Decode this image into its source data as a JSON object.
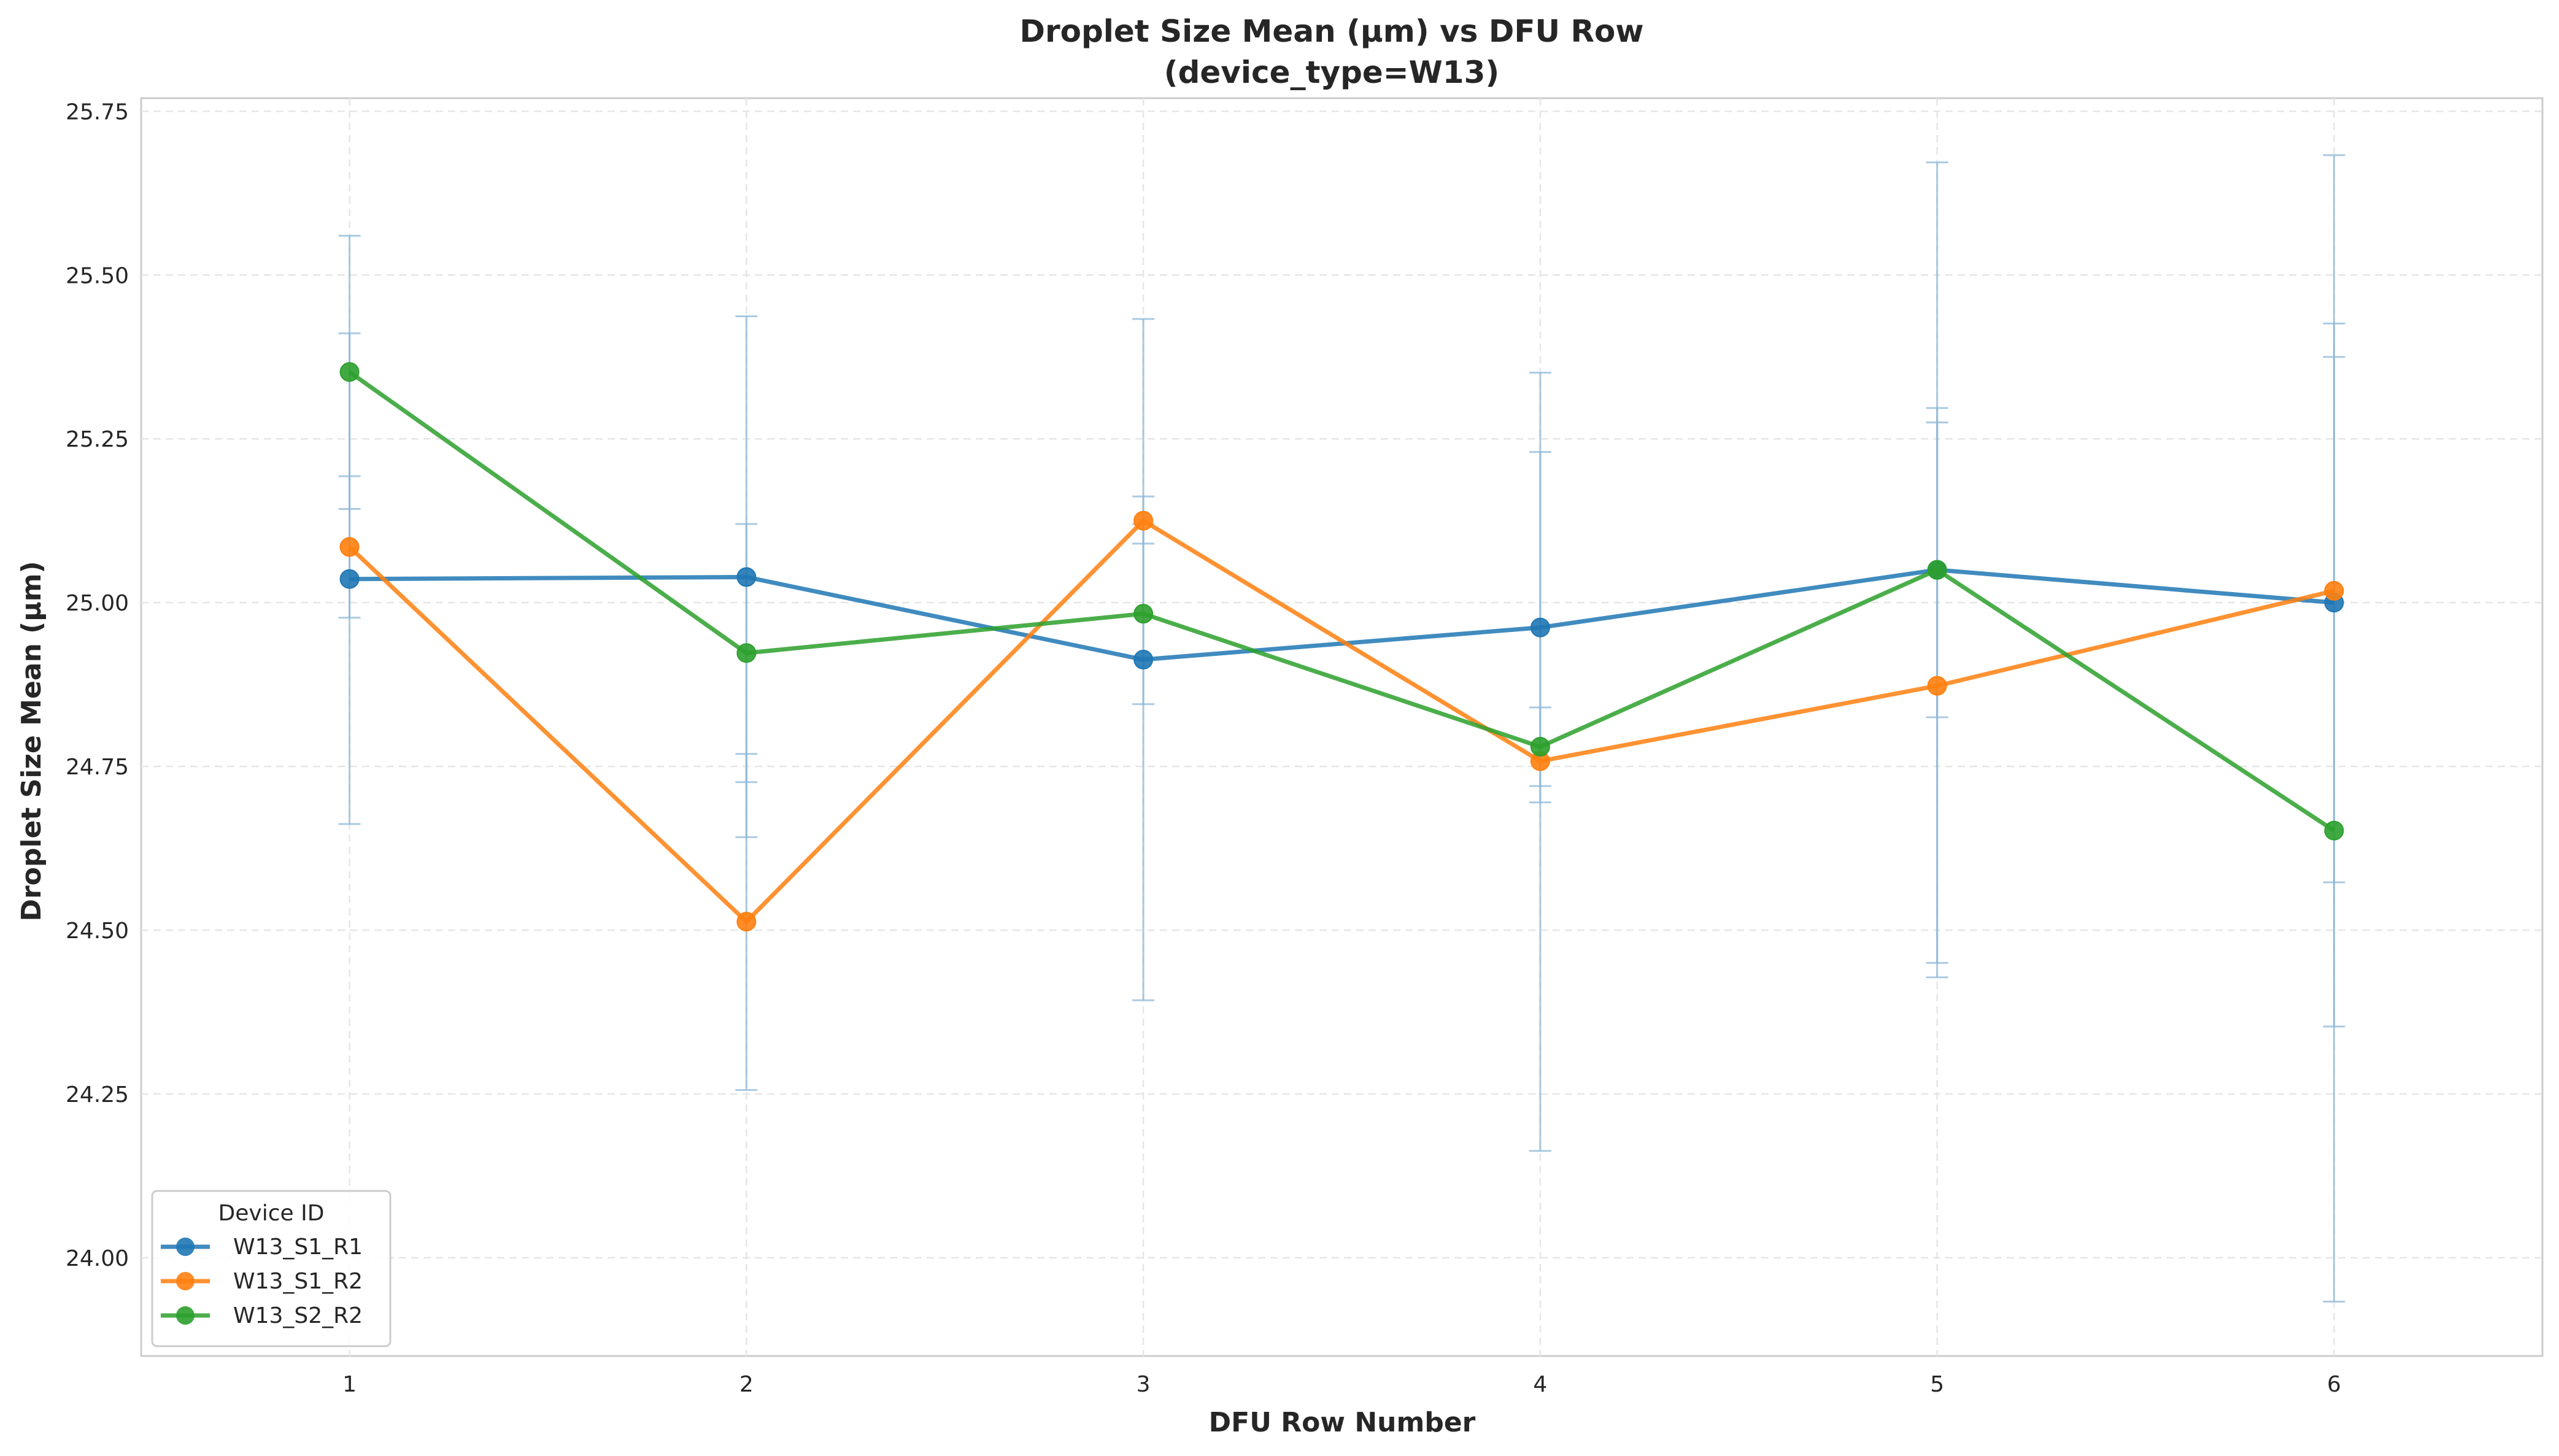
{
  "chart_data": {
    "type": "line",
    "title_line1": "Droplet Size Mean (μm) vs DFU Row",
    "title_line2": "(device_type=W13)",
    "xlabel": "DFU Row Number",
    "ylabel": "Droplet Size Mean (μm)",
    "x": [
      1,
      2,
      3,
      4,
      5,
      6
    ],
    "xlim": [
      0.475,
      6.525
    ],
    "ylim": [
      23.85,
      25.77
    ],
    "yticks": [
      "24.00",
      "24.25",
      "24.50",
      "24.75",
      "25.00",
      "25.25",
      "25.50",
      "25.75"
    ],
    "grid": true,
    "legend": {
      "title": "Device ID",
      "placement": "lower-left"
    },
    "series": [
      {
        "name": "W13_S1_R1",
        "color": "#1f77b4",
        "values": [
          25.036,
          25.039,
          24.913,
          24.962,
          25.05,
          25.0
        ],
        "err_low": [
          24.662,
          24.642,
          24.393,
          24.695,
          24.428,
          24.353
        ],
        "err_high": [
          25.411,
          25.437,
          25.433,
          25.23,
          25.672,
          25.683
        ]
      },
      {
        "name": "W13_S1_R2",
        "color": "#ff7f0e",
        "values": [
          25.085,
          24.513,
          25.125,
          24.758,
          24.873,
          25.018
        ],
        "err_low": [
          24.977,
          24.256,
          25.09,
          24.163,
          24.45,
          23.933
        ],
        "err_high": [
          25.193,
          24.769,
          25.162,
          25.351,
          25.297,
          25.375
        ]
      },
      {
        "name": "W13_S2_R2",
        "color": "#2ca02c",
        "values": [
          25.352,
          24.923,
          24.983,
          24.78,
          25.05,
          24.652
        ],
        "err_low": [
          25.143,
          24.726,
          24.845,
          24.72,
          24.825,
          24.573
        ],
        "err_high": [
          25.56,
          25.12,
          25.12,
          24.84,
          25.275,
          25.426
        ]
      }
    ]
  }
}
